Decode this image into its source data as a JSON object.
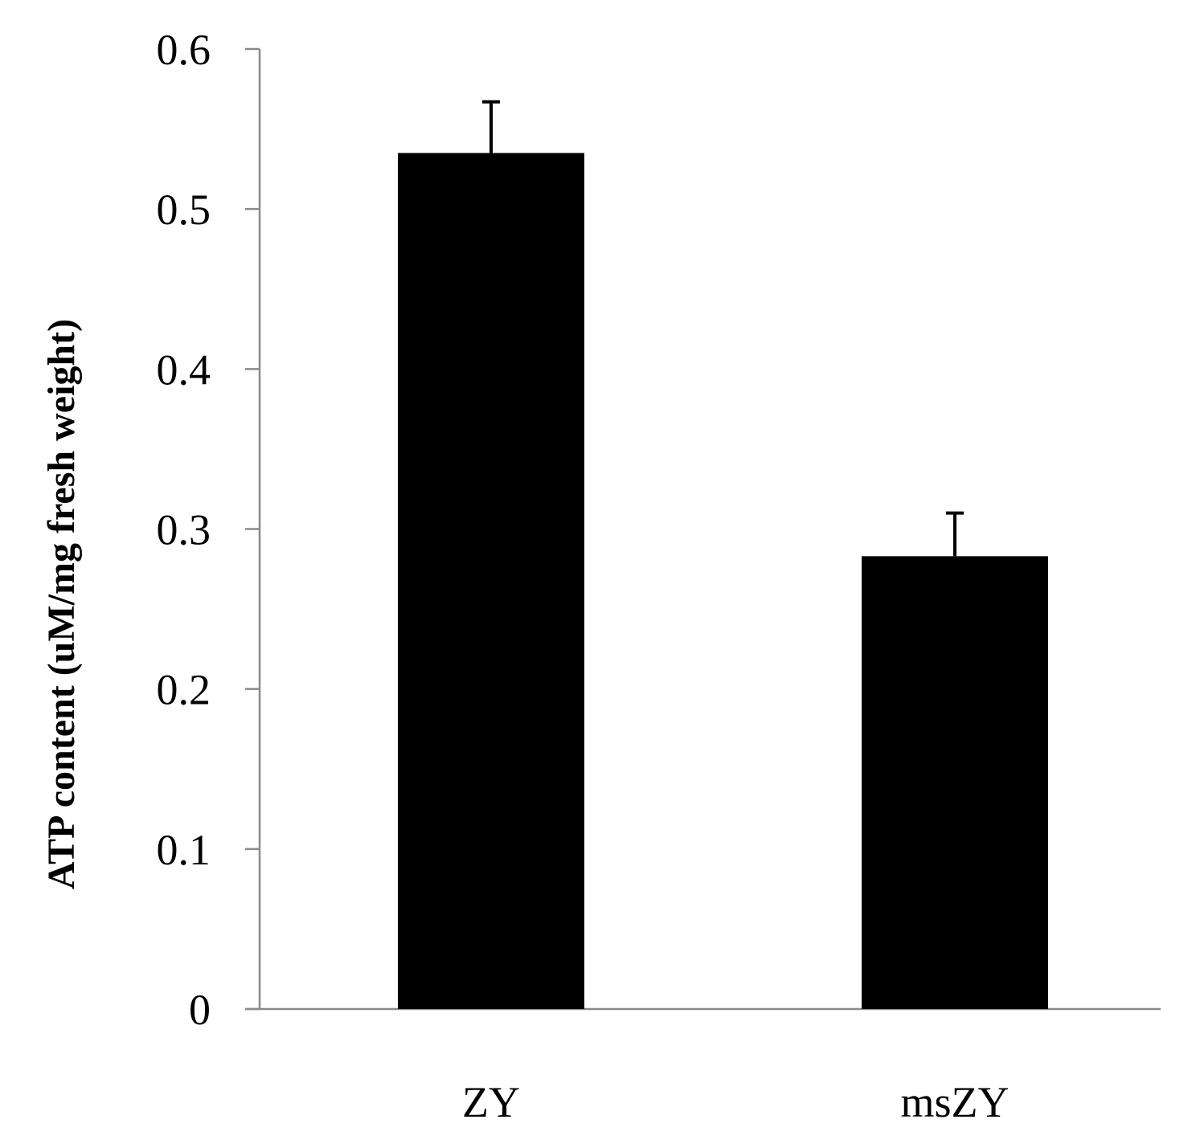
{
  "chart_data": {
    "type": "bar",
    "title": "",
    "xlabel": "",
    "ylabel": "ATP content (uM/mg fresh weight)",
    "categories": [
      "ZY",
      "msZY"
    ],
    "series": [
      {
        "values": [
          0.535,
          0.283
        ],
        "errors": [
          0.032,
          0.027
        ],
        "color": "#000000"
      }
    ],
    "ylim": [
      0,
      0.6
    ],
    "yticks": [
      0,
      0.1,
      0.2,
      0.3,
      0.4,
      0.5,
      0.6
    ],
    "ytick_labels": [
      "0",
      "0.1",
      "0.2",
      "0.3",
      "0.4",
      "0.5",
      "0.6"
    ],
    "grid": false,
    "legend": "none",
    "axis_color": "#8a8a8a"
  }
}
